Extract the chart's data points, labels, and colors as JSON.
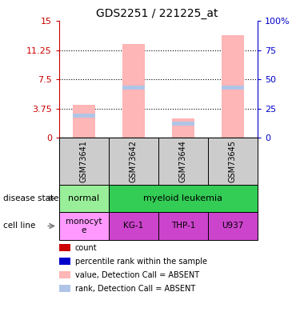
{
  "title": "GDS2251 / 221225_at",
  "samples": [
    "GSM73641",
    "GSM73642",
    "GSM73644",
    "GSM73645"
  ],
  "bar_values": [
    4.2,
    12.0,
    2.5,
    13.2
  ],
  "rank_values": [
    19,
    43,
    12,
    43
  ],
  "bar_color": "#ffb6b6",
  "rank_color": "#b0c4e8",
  "ylim_left": [
    0,
    15
  ],
  "ylim_right": [
    0,
    100
  ],
  "yticks_left": [
    0,
    3.75,
    7.5,
    11.25,
    15
  ],
  "yticks_right": [
    0,
    25,
    50,
    75,
    100
  ],
  "ytick_labels_left": [
    "0",
    "3.75",
    "7.5",
    "11.25",
    "15"
  ],
  "ytick_labels_right": [
    "0",
    "25",
    "50",
    "75",
    "100%"
  ],
  "left_color": "#cc0000",
  "right_color": "#0000cc",
  "sample_box_color": "#cccccc",
  "disease_groups": [
    {
      "start": 0,
      "end": 1,
      "label": "normal",
      "color": "#99ee99"
    },
    {
      "start": 1,
      "end": 4,
      "label": "myeloid leukemia",
      "color": "#33cc55"
    }
  ],
  "cell_lines": [
    "monocyt\ne",
    "KG-1",
    "THP-1",
    "U937"
  ],
  "cell_colors": [
    "#ff99ff",
    "#cc44cc",
    "#cc44cc",
    "#cc44cc"
  ],
  "legend_items": [
    {
      "color": "#cc0000",
      "label": "count"
    },
    {
      "color": "#0000cc",
      "label": "percentile rank within the sample"
    },
    {
      "color": "#ffb6b6",
      "label": "value, Detection Call = ABSENT"
    },
    {
      "color": "#b0c4e8",
      "label": "rank, Detection Call = ABSENT"
    }
  ]
}
